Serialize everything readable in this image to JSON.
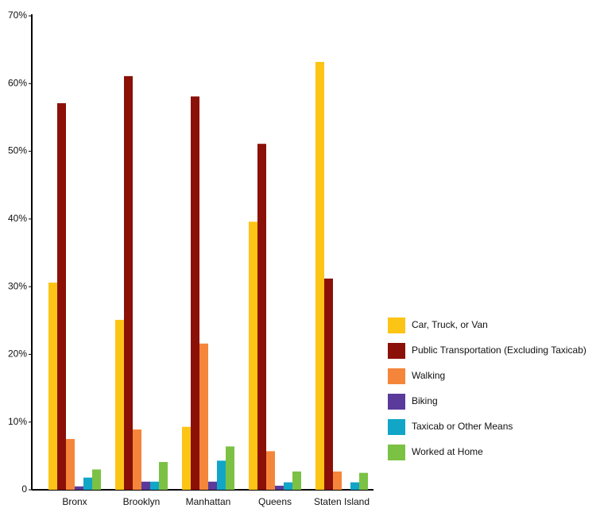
{
  "chart_data": {
    "type": "bar",
    "categories": [
      "Bronx",
      "Brooklyn",
      "Manhattan",
      "Queens",
      "Staten Island"
    ],
    "series": [
      {
        "name": "Car, Truck, or Van",
        "color": "#fcc415",
        "values": [
          30.6,
          25.1,
          9.3,
          39.6,
          63.2
        ]
      },
      {
        "name": "Public Transportation (Excluding Taxicab)",
        "color": "#8b1008",
        "values": [
          57.1,
          61.1,
          58.1,
          51.1,
          31.2
        ]
      },
      {
        "name": "Walking",
        "color": "#f5853a",
        "values": [
          7.5,
          8.9,
          21.6,
          5.7,
          2.7
        ]
      },
      {
        "name": "Biking",
        "color": "#5a3a9a",
        "values": [
          0.5,
          1.2,
          1.2,
          0.6,
          0
        ]
      },
      {
        "name": "Taxicab or Other Means",
        "color": "#11a5c8",
        "values": [
          1.8,
          1.2,
          4.3,
          1.1,
          1.1
        ]
      },
      {
        "name": "Worked at Home",
        "color": "#7bc144",
        "values": [
          3.0,
          4.1,
          6.4,
          2.7,
          2.5
        ]
      }
    ],
    "ylim": [
      0,
      70
    ],
    "yticks": [
      0,
      {
        "value": 10,
        "label": "10%"
      },
      {
        "value": 20,
        "label": "20%"
      },
      {
        "value": 30,
        "label": "30%"
      },
      {
        "value": 40,
        "label": "40%"
      },
      {
        "value": 50,
        "label": "50%"
      },
      {
        "value": 60,
        "label": "60%"
      },
      {
        "value": 70,
        "label": "70%"
      }
    ],
    "legend": "right"
  }
}
